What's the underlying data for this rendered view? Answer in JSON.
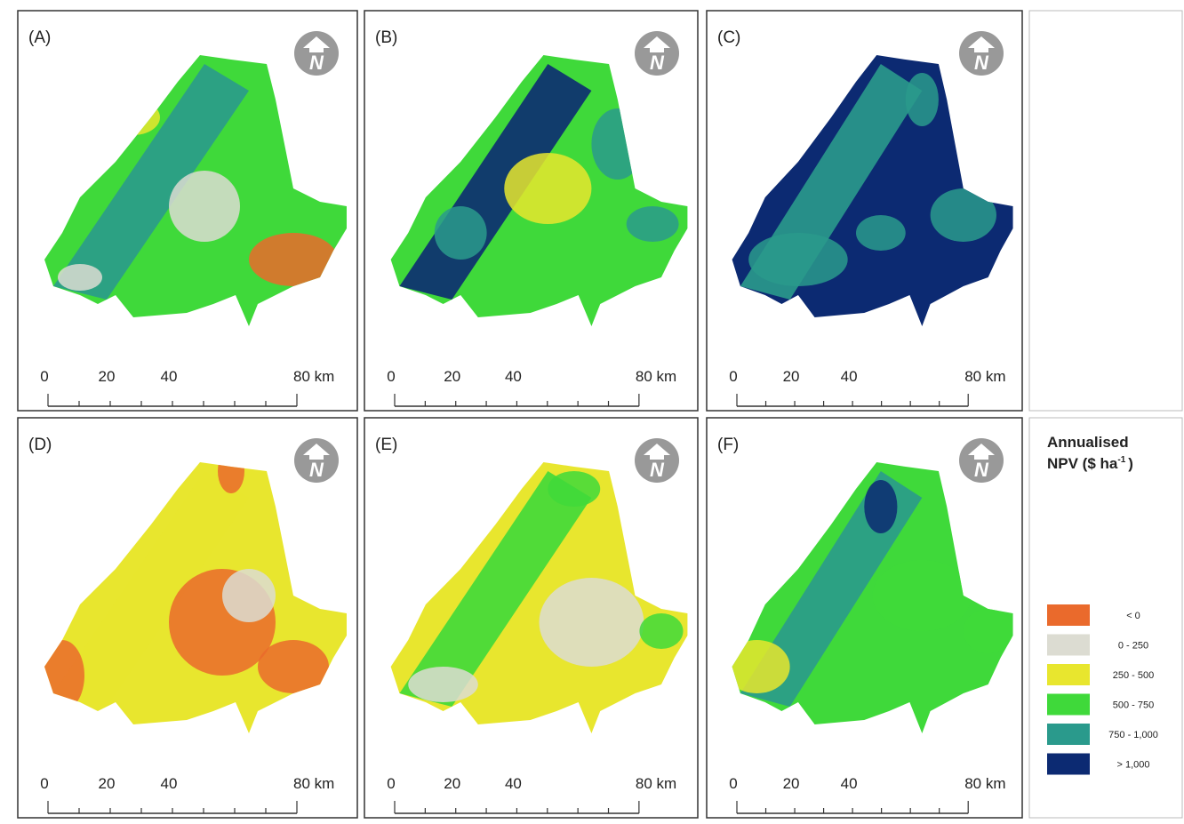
{
  "panels": [
    {
      "label": "(A)"
    },
    {
      "label": "(B)"
    },
    {
      "label": "(C)"
    },
    {
      "label": "(D)"
    },
    {
      "label": "(E)"
    },
    {
      "label": "(F)"
    }
  ],
  "north_arrow": "N",
  "scale_bar": {
    "labels": [
      "0",
      "20",
      "40",
      "80 km"
    ]
  },
  "legend": {
    "title": "Annualised",
    "unit": "NPV ($ ha",
    "unit_exponent": "-1",
    "unit_close": ")",
    "items": [
      {
        "label": "< 0",
        "color": "#ea6a2c"
      },
      {
        "label": "0 - 250",
        "color": "#dcdcd2"
      },
      {
        "label": "250 - 500",
        "color": "#e8e62e"
      },
      {
        "label": "500 - 750",
        "color": "#3fd93a"
      },
      {
        "label": "750 - 1,000",
        "color": "#2a9a8c"
      },
      {
        "label": "> 1,000",
        "color": "#0c2a72"
      }
    ]
  }
}
